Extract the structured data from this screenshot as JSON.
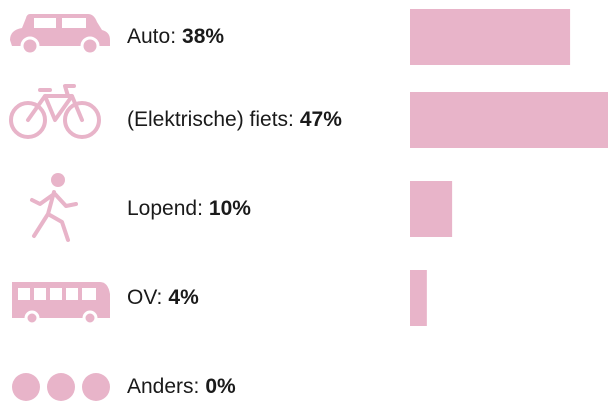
{
  "chart_data": {
    "type": "bar",
    "orientation": "horizontal",
    "categories": [
      "Auto:",
      "(Elektrische) fiets:",
      "Lopend:",
      "OV:",
      "Anders:"
    ],
    "values": [
      38,
      47,
      10,
      4,
      0
    ],
    "value_labels": [
      "38%",
      "47%",
      "10%",
      "4%",
      "0%"
    ],
    "color": "#e8b4c9"
  }
}
